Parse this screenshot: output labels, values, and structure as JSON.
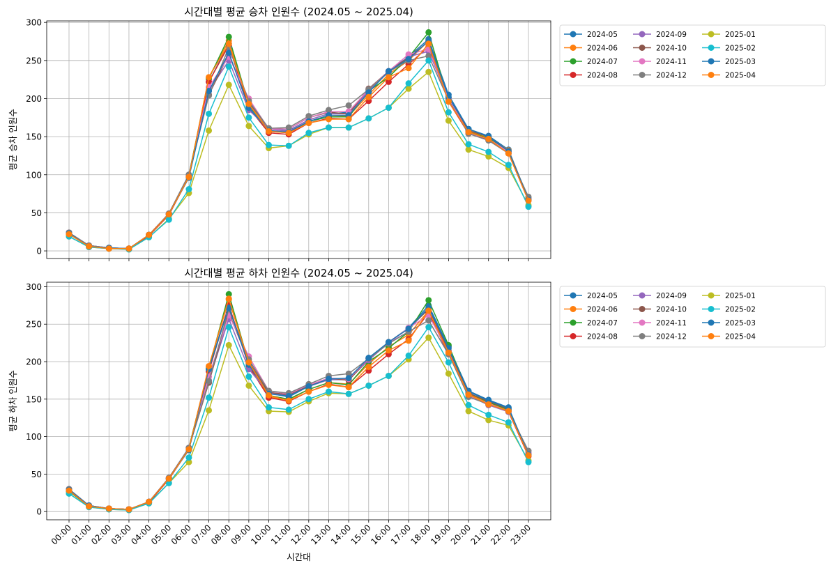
{
  "chart_data": [
    {
      "type": "line",
      "title": "시간대별 평균 승차 인원수 (2024.05 ~ 2025.04)",
      "xlabel": "",
      "ylabel": "평균 승차 인원수",
      "ylim": [
        -10,
        302
      ],
      "yticks": [
        0,
        50,
        100,
        150,
        200,
        250,
        300
      ],
      "grid": true,
      "legend_position": "outside-right-top",
      "categories": [
        "00:00",
        "01:00",
        "02:00",
        "03:00",
        "04:00",
        "05:00",
        "06:00",
        "07:00",
        "08:00",
        "09:00",
        "10:00",
        "11:00",
        "12:00",
        "13:00",
        "14:00",
        "15:00",
        "16:00",
        "17:00",
        "18:00",
        "19:00",
        "20:00",
        "21:00",
        "22:00",
        "23:00"
      ],
      "series": [
        {
          "name": "2024-05",
          "color": "#1f77b4",
          "values": [
            24,
            7,
            4,
            3,
            21,
            49,
            100,
            222,
            272,
            190,
            160,
            158,
            172,
            180,
            182,
            212,
            236,
            255,
            278,
            205,
            160,
            151,
            133,
            68
          ]
        },
        {
          "name": "2024-06",
          "color": "#ff7f0e",
          "values": [
            23,
            6,
            4,
            3,
            21,
            48,
            98,
            228,
            276,
            193,
            158,
            155,
            170,
            178,
            177,
            205,
            232,
            250,
            276,
            200,
            157,
            149,
            132,
            67
          ]
        },
        {
          "name": "2024-07",
          "color": "#2ca02c",
          "values": [
            22,
            6,
            3,
            3,
            20,
            48,
            99,
            226,
            281,
            192,
            157,
            155,
            170,
            176,
            176,
            210,
            228,
            254,
            287,
            198,
            156,
            148,
            130,
            67
          ]
        },
        {
          "name": "2024-08",
          "color": "#d62728",
          "values": [
            22,
            6,
            3,
            3,
            20,
            47,
            97,
            222,
            270,
            188,
            155,
            153,
            168,
            174,
            173,
            197,
            222,
            245,
            268,
            196,
            154,
            146,
            128,
            66
          ]
        },
        {
          "name": "2024-09",
          "color": "#9467bd",
          "values": [
            23,
            6,
            4,
            3,
            21,
            48,
            98,
            210,
            250,
            185,
            160,
            157,
            172,
            180,
            180,
            210,
            235,
            255,
            262,
            200,
            155,
            147,
            130,
            67
          ]
        },
        {
          "name": "2024-10",
          "color": "#8c564b",
          "values": [
            24,
            7,
            4,
            3,
            21,
            49,
            100,
            205,
            258,
            195,
            161,
            160,
            175,
            182,
            180,
            213,
            236,
            254,
            275,
            201,
            158,
            150,
            131,
            69
          ]
        },
        {
          "name": "2024-11",
          "color": "#e377c2",
          "values": [
            24,
            7,
            4,
            3,
            21,
            49,
            99,
            215,
            255,
            200,
            160,
            160,
            175,
            183,
            183,
            212,
            236,
            258,
            265,
            200,
            155,
            147,
            130,
            68
          ]
        },
        {
          "name": "2024-12",
          "color": "#7f7f7f",
          "values": [
            24,
            7,
            4,
            3,
            21,
            49,
            100,
            204,
            267,
            197,
            161,
            162,
            177,
            185,
            191,
            212,
            235,
            250,
            256,
            198,
            154,
            145,
            128,
            71
          ]
        },
        {
          "name": "2025-01",
          "color": "#bcbd22",
          "values": [
            19,
            5,
            3,
            2,
            18,
            42,
            76,
            158,
            218,
            164,
            135,
            138,
            153,
            162,
            162,
            174,
            188,
            213,
            235,
            171,
            133,
            124,
            109,
            60
          ]
        },
        {
          "name": "2025-02",
          "color": "#17becf",
          "values": [
            19,
            5,
            3,
            2,
            18,
            41,
            81,
            180,
            242,
            175,
            139,
            138,
            155,
            162,
            162,
            174,
            188,
            220,
            250,
            182,
            140,
            130,
            113,
            58
          ]
        },
        {
          "name": "2025-03",
          "color": "#1f77b4",
          "values": [
            23,
            6,
            4,
            3,
            21,
            48,
            96,
            210,
            260,
            188,
            158,
            156,
            170,
            178,
            178,
            208,
            236,
            252,
            276,
            202,
            160,
            150,
            131,
            67
          ]
        },
        {
          "name": "2025-04",
          "color": "#ff7f0e",
          "values": [
            22,
            6,
            3,
            3,
            21,
            48,
            97,
            228,
            272,
            193,
            157,
            155,
            168,
            173,
            173,
            202,
            228,
            240,
            272,
            196,
            156,
            147,
            128,
            66
          ]
        }
      ]
    },
    {
      "type": "line",
      "title": "시간대별 평균 하차 인원수 (2024.05 ~ 2025.04)",
      "xlabel": "시간대",
      "ylabel": "평균 하차 인원수",
      "ylim": [
        -11,
        306
      ],
      "yticks": [
        0,
        50,
        100,
        150,
        200,
        250,
        300
      ],
      "grid": true,
      "legend_position": "outside-right-top",
      "categories": [
        "00:00",
        "01:00",
        "02:00",
        "03:00",
        "04:00",
        "05:00",
        "06:00",
        "07:00",
        "08:00",
        "09:00",
        "10:00",
        "11:00",
        "12:00",
        "13:00",
        "14:00",
        "15:00",
        "16:00",
        "17:00",
        "18:00",
        "19:00",
        "20:00",
        "21:00",
        "22:00",
        "23:00"
      ],
      "series": [
        {
          "name": "2024-05",
          "color": "#1f77b4",
          "values": [
            29,
            8,
            4,
            3,
            13,
            44,
            85,
            190,
            275,
            195,
            158,
            153,
            167,
            176,
            176,
            205,
            226,
            245,
            275,
            220,
            161,
            149,
            139,
            76
          ]
        },
        {
          "name": "2024-06",
          "color": "#ff7f0e",
          "values": [
            28,
            7,
            4,
            3,
            13,
            44,
            84,
            193,
            283,
            198,
            153,
            149,
            163,
            172,
            170,
            197,
            220,
            236,
            268,
            213,
            157,
            145,
            135,
            75
          ]
        },
        {
          "name": "2024-07",
          "color": "#2ca02c",
          "values": [
            27,
            7,
            4,
            3,
            12,
            44,
            85,
            191,
            290,
            198,
            155,
            150,
            163,
            172,
            169,
            200,
            218,
            240,
            282,
            222,
            158,
            146,
            136,
            75
          ]
        },
        {
          "name": "2024-08",
          "color": "#d62728",
          "values": [
            28,
            7,
            4,
            3,
            12,
            43,
            83,
            187,
            275,
            194,
            152,
            147,
            160,
            170,
            166,
            188,
            210,
            230,
            265,
            210,
            155,
            143,
            133,
            74
          ]
        },
        {
          "name": "2024-09",
          "color": "#9467bd",
          "values": [
            29,
            8,
            4,
            3,
            13,
            44,
            84,
            175,
            257,
            190,
            158,
            155,
            167,
            176,
            176,
            202,
            225,
            240,
            255,
            210,
            155,
            142,
            133,
            76
          ]
        },
        {
          "name": "2024-10",
          "color": "#8c564b",
          "values": [
            30,
            8,
            4,
            3,
            13,
            45,
            85,
            172,
            265,
            200,
            159,
            156,
            168,
            178,
            175,
            204,
            226,
            244,
            270,
            215,
            158,
            147,
            137,
            78
          ]
        },
        {
          "name": "2024-11",
          "color": "#e377c2",
          "values": [
            30,
            8,
            4,
            3,
            13,
            45,
            85,
            180,
            262,
            207,
            161,
            157,
            169,
            178,
            177,
            204,
            225,
            245,
            262,
            213,
            155,
            144,
            134,
            78
          ]
        },
        {
          "name": "2024-12",
          "color": "#7f7f7f",
          "values": [
            30,
            8,
            4,
            3,
            13,
            45,
            85,
            174,
            270,
            203,
            161,
            158,
            170,
            181,
            184,
            204,
            224,
            240,
            255,
            210,
            153,
            143,
            134,
            81
          ]
        },
        {
          "name": "2025-01",
          "color": "#bcbd22",
          "values": [
            24,
            6,
            3,
            2,
            11,
            38,
            66,
            135,
            222,
            168,
            134,
            133,
            147,
            158,
            157,
            168,
            181,
            203,
            232,
            184,
            134,
            122,
            115,
            68
          ]
        },
        {
          "name": "2025-02",
          "color": "#17becf",
          "values": [
            24,
            6,
            3,
            2,
            11,
            38,
            72,
            152,
            246,
            180,
            139,
            136,
            150,
            160,
            157,
            168,
            181,
            208,
            246,
            199,
            142,
            129,
            119,
            66
          ]
        },
        {
          "name": "2025-03",
          "color": "#1f77b4",
          "values": [
            29,
            8,
            4,
            3,
            13,
            44,
            82,
            190,
            272,
            196,
            157,
            154,
            167,
            177,
            178,
            205,
            226,
            244,
            272,
            218,
            160,
            148,
            138,
            76
          ]
        },
        {
          "name": "2025-04",
          "color": "#ff7f0e",
          "values": [
            28,
            7,
            4,
            3,
            13,
            44,
            83,
            194,
            284,
            199,
            155,
            148,
            160,
            169,
            166,
            193,
            215,
            228,
            268,
            212,
            156,
            143,
            134,
            75
          ]
        }
      ]
    }
  ]
}
